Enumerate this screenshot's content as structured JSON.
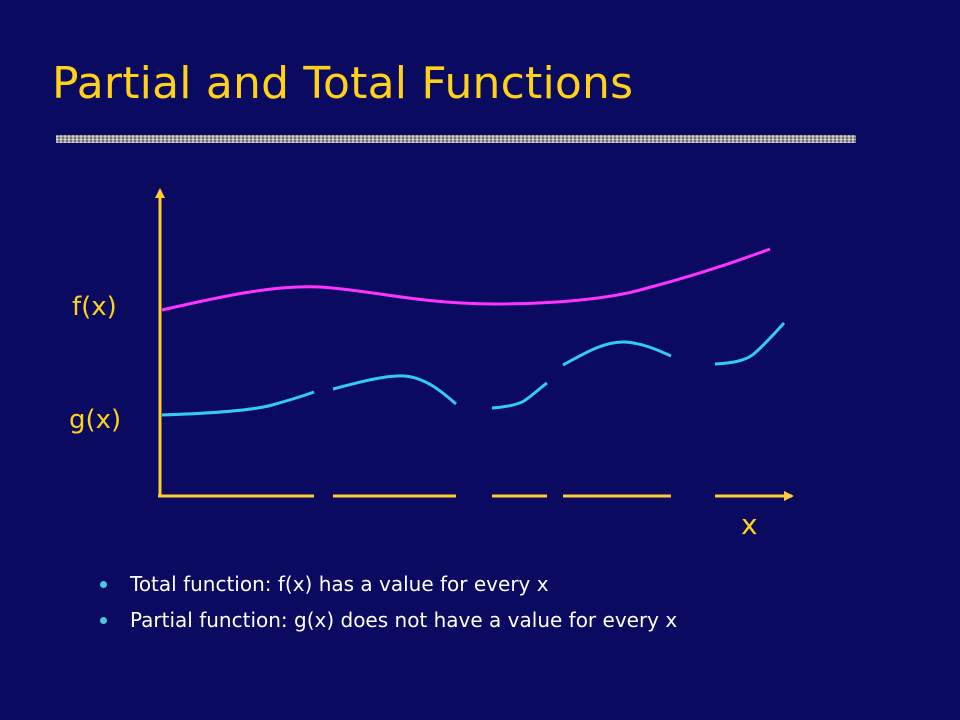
{
  "slide": {
    "title": "Partial and Total Functions"
  },
  "graph": {
    "f_label": "f(x)",
    "g_label": "g(x)",
    "x_label": "x",
    "colors": {
      "axis": "#ffcc33",
      "total_function": "#ff33ff",
      "partial_function": "#33ccee"
    }
  },
  "bullets": [
    "Total function: f(x) has a value for every x",
    "Partial function: g(x) does not have a value for every x"
  ]
}
